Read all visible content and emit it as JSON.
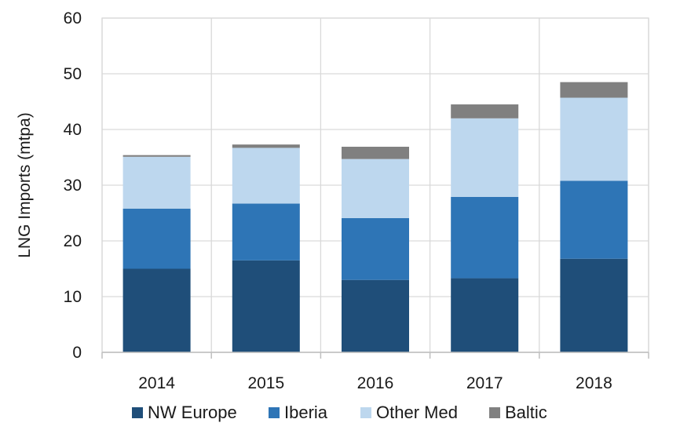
{
  "chart_data": {
    "type": "bar",
    "stacked": true,
    "title": "",
    "xlabel": "",
    "ylabel": "LNG Imports (mtpa)",
    "ylim": [
      0,
      60
    ],
    "yticks": [
      "0",
      "10",
      "20",
      "30",
      "40",
      "50",
      "60"
    ],
    "categories": [
      "2014",
      "2015",
      "2016",
      "2017",
      "2018"
    ],
    "grid": true,
    "legend_position": "bottom",
    "series": [
      {
        "name": "NW Europe",
        "color": "#1f4e79",
        "values": [
          15.0,
          16.5,
          13.0,
          13.3,
          16.8
        ]
      },
      {
        "name": "Iberia",
        "color": "#2e75b6",
        "values": [
          10.8,
          10.2,
          11.1,
          14.6,
          14.0
        ]
      },
      {
        "name": "Other Med",
        "color": "#bdd7ee",
        "values": [
          9.3,
          10.0,
          10.6,
          14.1,
          14.9
        ]
      },
      {
        "name": "Baltic",
        "color": "#808080",
        "values": [
          0.3,
          0.6,
          2.2,
          2.5,
          2.8
        ]
      }
    ]
  }
}
